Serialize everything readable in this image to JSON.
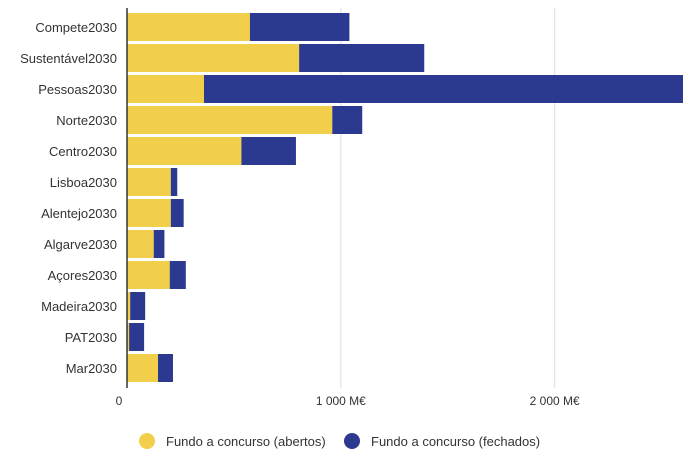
{
  "chart_data": {
    "type": "bar",
    "orientation": "horizontal",
    "stacked": true,
    "categories": [
      "Compete2030",
      "Sustentável2030",
      "Pessoas2030",
      "Norte2030",
      "Centro2030",
      "Lisboa2030",
      "Alentejo2030",
      "Algarve2030",
      "Açores2030",
      "Madeira2030",
      "PAT2030",
      "Mar2030"
    ],
    "series": [
      {
        "name": "Fundo a concurso (abertos)",
        "color": "#f2cf4a",
        "values": [
          575,
          805,
          360,
          960,
          535,
          205,
          205,
          125,
          200,
          15,
          10,
          145
        ]
      },
      {
        "name": "Fundo a concurso (fechados)",
        "color": "#2b3990",
        "values": [
          465,
          585,
          2240,
          140,
          255,
          30,
          60,
          50,
          75,
          70,
          70,
          70
        ]
      }
    ],
    "xlim": [
      0,
      2600
    ],
    "xticks": [
      {
        "value": 0,
        "label": "0"
      },
      {
        "value": 1000,
        "label": "1 000 M€"
      },
      {
        "value": 2000,
        "label": "2 000 M€"
      }
    ],
    "grid": true,
    "legend": "bottom"
  }
}
